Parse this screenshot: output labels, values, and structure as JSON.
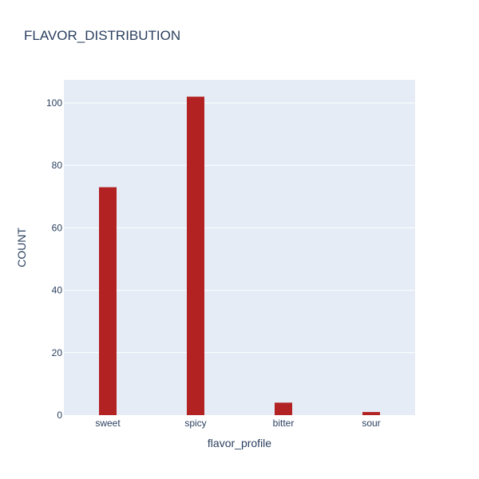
{
  "colors": {
    "bar": "#b22222",
    "plot_background": "#e5ecf6",
    "paper_background": "#ffffff",
    "text": "#2a3f5f",
    "grid": "#ffffff"
  },
  "chart_data": {
    "type": "bar",
    "title": "FLAVOR_DISTRIBUTION",
    "xlabel": "flavor_profile",
    "ylabel": "COUNT",
    "categories": [
      "sweet",
      "spicy",
      "bitter",
      "sour"
    ],
    "values": [
      73,
      102,
      4,
      1
    ],
    "ylim": [
      0,
      107.4
    ],
    "yticks": [
      0,
      20,
      40,
      60,
      80,
      100
    ],
    "grid": true,
    "legend": false
  }
}
